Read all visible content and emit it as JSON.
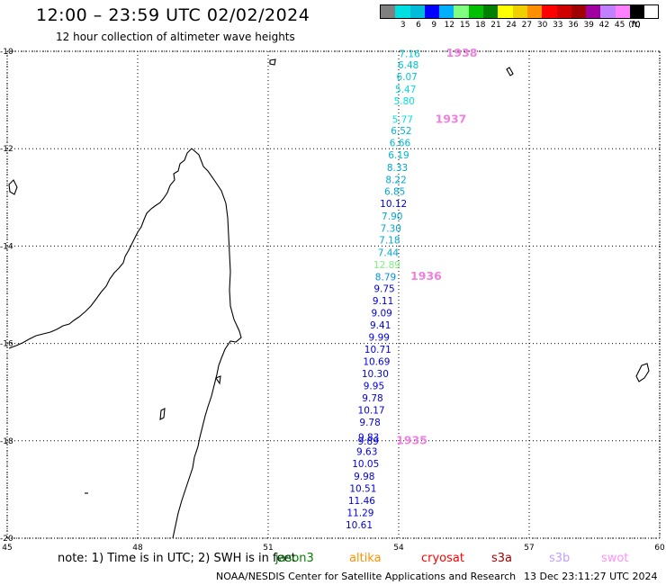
{
  "header": {
    "title": "12:00 – 23:59 UTC 02/02/2024",
    "subtitle": "12 hour collection of altimeter wave heights"
  },
  "legend": {
    "unit": "(ft)",
    "bins": [
      {
        "label": "",
        "color": "#808080"
      },
      {
        "label": "3",
        "color": "#00e0e0"
      },
      {
        "label": "6",
        "color": "#00bcd8"
      },
      {
        "label": "9",
        "color": "#0000ff"
      },
      {
        "label": "12",
        "color": "#00b0ff"
      },
      {
        "label": "15",
        "color": "#80ff80"
      },
      {
        "label": "18",
        "color": "#00c000"
      },
      {
        "label": "21",
        "color": "#008000"
      },
      {
        "label": "24",
        "color": "#ffff00"
      },
      {
        "label": "27",
        "color": "#f0d000"
      },
      {
        "label": "30",
        "color": "#ff9000"
      },
      {
        "label": "33",
        "color": "#ff0000"
      },
      {
        "label": "36",
        "color": "#d00000"
      },
      {
        "label": "39",
        "color": "#a00000"
      },
      {
        "label": "42",
        "color": "#a000a0"
      },
      {
        "label": "45",
        "color": "#c080ff"
      },
      {
        "label": "70",
        "color": "#ff80ff"
      },
      {
        "label": "",
        "color": "#000000"
      }
    ]
  },
  "map": {
    "lon_ticks": [
      "45",
      "48",
      "51",
      "54",
      "57",
      "60"
    ],
    "lat_ticks": [
      "-10",
      "-12",
      "-14",
      "-16",
      "-18",
      "-20"
    ],
    "lon_range": [
      45,
      60
    ],
    "lat_range": [
      -20,
      -10
    ]
  },
  "track": {
    "points": [
      {
        "lon": 54.25,
        "lat": -10.05,
        "value": "7.16",
        "color": "#00c8d0"
      },
      {
        "lon": 54.22,
        "lat": -10.28,
        "value": "6.48",
        "color": "#00c8d0"
      },
      {
        "lon": 54.19,
        "lat": -10.52,
        "value": "6.07",
        "color": "#00c8d0"
      },
      {
        "lon": 54.16,
        "lat": -10.78,
        "value": "5.47",
        "color": "#00e0e0"
      },
      {
        "lon": 54.13,
        "lat": -11.02,
        "value": "5.80",
        "color": "#00e0e0"
      },
      {
        "lon": 54.09,
        "lat": -11.4,
        "value": "5.77",
        "color": "#00e0e0"
      },
      {
        "lon": 54.06,
        "lat": -11.63,
        "value": "6.52",
        "color": "#00b8d0"
      },
      {
        "lon": 54.03,
        "lat": -11.88,
        "value": "6.66",
        "color": "#00b8d0"
      },
      {
        "lon": 54.0,
        "lat": -12.13,
        "value": "6.19",
        "color": "#00b8d0"
      },
      {
        "lon": 53.97,
        "lat": -12.38,
        "value": "8.33",
        "color": "#00a8d0"
      },
      {
        "lon": 53.94,
        "lat": -12.63,
        "value": "8.22",
        "color": "#00a8d0"
      },
      {
        "lon": 53.91,
        "lat": -12.87,
        "value": "6.85",
        "color": "#00a8d0"
      },
      {
        "lon": 53.88,
        "lat": -13.12,
        "value": "10.12",
        "color": "#0000e0"
      },
      {
        "lon": 53.85,
        "lat": -13.38,
        "value": "7.90",
        "color": "#00a8d0"
      },
      {
        "lon": 53.82,
        "lat": -13.63,
        "value": "7.30",
        "color": "#00a8d0"
      },
      {
        "lon": 53.79,
        "lat": -13.87,
        "value": "7.18",
        "color": "#00a8d0"
      },
      {
        "lon": 53.76,
        "lat": -14.13,
        "value": "7.44",
        "color": "#00a8d0"
      },
      {
        "lon": 53.73,
        "lat": -14.38,
        "value": "12.89",
        "color": "#80f080"
      },
      {
        "lon": 53.7,
        "lat": -14.63,
        "value": "8.79",
        "color": "#0090e0"
      },
      {
        "lon": 53.67,
        "lat": -14.87,
        "value": "9.75",
        "color": "#0000e0"
      },
      {
        "lon": 53.64,
        "lat": -15.12,
        "value": "9.11",
        "color": "#0000e0"
      },
      {
        "lon": 53.61,
        "lat": -15.37,
        "value": "9.09",
        "color": "#0000e0"
      },
      {
        "lon": 53.58,
        "lat": -15.62,
        "value": "9.41",
        "color": "#0000e0"
      },
      {
        "lon": 53.55,
        "lat": -15.87,
        "value": "9.99",
        "color": "#0000e0"
      },
      {
        "lon": 53.52,
        "lat": -16.12,
        "value": "10.71",
        "color": "#0000e0"
      },
      {
        "lon": 53.49,
        "lat": -16.37,
        "value": "10.69",
        "color": "#0000e0"
      },
      {
        "lon": 53.46,
        "lat": -16.62,
        "value": "10.30",
        "color": "#0000e0"
      },
      {
        "lon": 53.43,
        "lat": -16.87,
        "value": "9.95",
        "color": "#0000e0"
      },
      {
        "lon": 53.4,
        "lat": -17.12,
        "value": "9.78",
        "color": "#0000e0"
      },
      {
        "lon": 53.37,
        "lat": -17.37,
        "value": "10.17",
        "color": "#0000e0"
      },
      {
        "lon": 53.34,
        "lat": -17.62,
        "value": "9.78",
        "color": "#0000e0"
      },
      {
        "lon": 53.31,
        "lat": -17.92,
        "value": "9.83",
        "color": "#0000e0"
      },
      {
        "lon": 53.3,
        "lat": -18.0,
        "value": "9.89",
        "color": "#0000e0"
      },
      {
        "lon": 53.27,
        "lat": -18.22,
        "value": "9.63",
        "color": "#0000e0"
      },
      {
        "lon": 53.24,
        "lat": -18.47,
        "value": "10.05",
        "color": "#0000e0"
      },
      {
        "lon": 53.21,
        "lat": -18.72,
        "value": "9.98",
        "color": "#0000e0"
      },
      {
        "lon": 53.18,
        "lat": -18.97,
        "value": "10.51",
        "color": "#0000e0"
      },
      {
        "lon": 53.15,
        "lat": -19.22,
        "value": "11.46",
        "color": "#0000e0"
      },
      {
        "lon": 53.12,
        "lat": -19.47,
        "value": "11.29",
        "color": "#0000e0"
      },
      {
        "lon": 53.09,
        "lat": -19.72,
        "value": "10.61",
        "color": "#0000e0"
      }
    ],
    "time_labels": [
      {
        "lon": 55.45,
        "lat": -10.02,
        "text": "1938"
      },
      {
        "lon": 55.2,
        "lat": -11.38,
        "text": "1937"
      },
      {
        "lon": 54.63,
        "lat": -14.6,
        "text": "1936"
      },
      {
        "lon": 54.3,
        "lat": -17.98,
        "text": "1935"
      }
    ],
    "time_label_color": "#f080e0"
  },
  "footer": {
    "note": "note:  1) Time is in UTC; 2) SWH is in feet",
    "missions": [
      {
        "name": "jason3",
        "color": "#008000"
      },
      {
        "name": "altika",
        "color": "#ff9000"
      },
      {
        "name": "cryosat",
        "color": "#ff0000"
      },
      {
        "name": "s3a",
        "color": "#a00000"
      },
      {
        "name": "s3b",
        "color": "#c0a0ff"
      },
      {
        "name": "swot",
        "color": "#ff90ff"
      }
    ],
    "credit": "NOAA/NESDIS Center for Satellite Applications and Research",
    "timestamp": "13 Dec 23:11:27 UTC 2024"
  }
}
